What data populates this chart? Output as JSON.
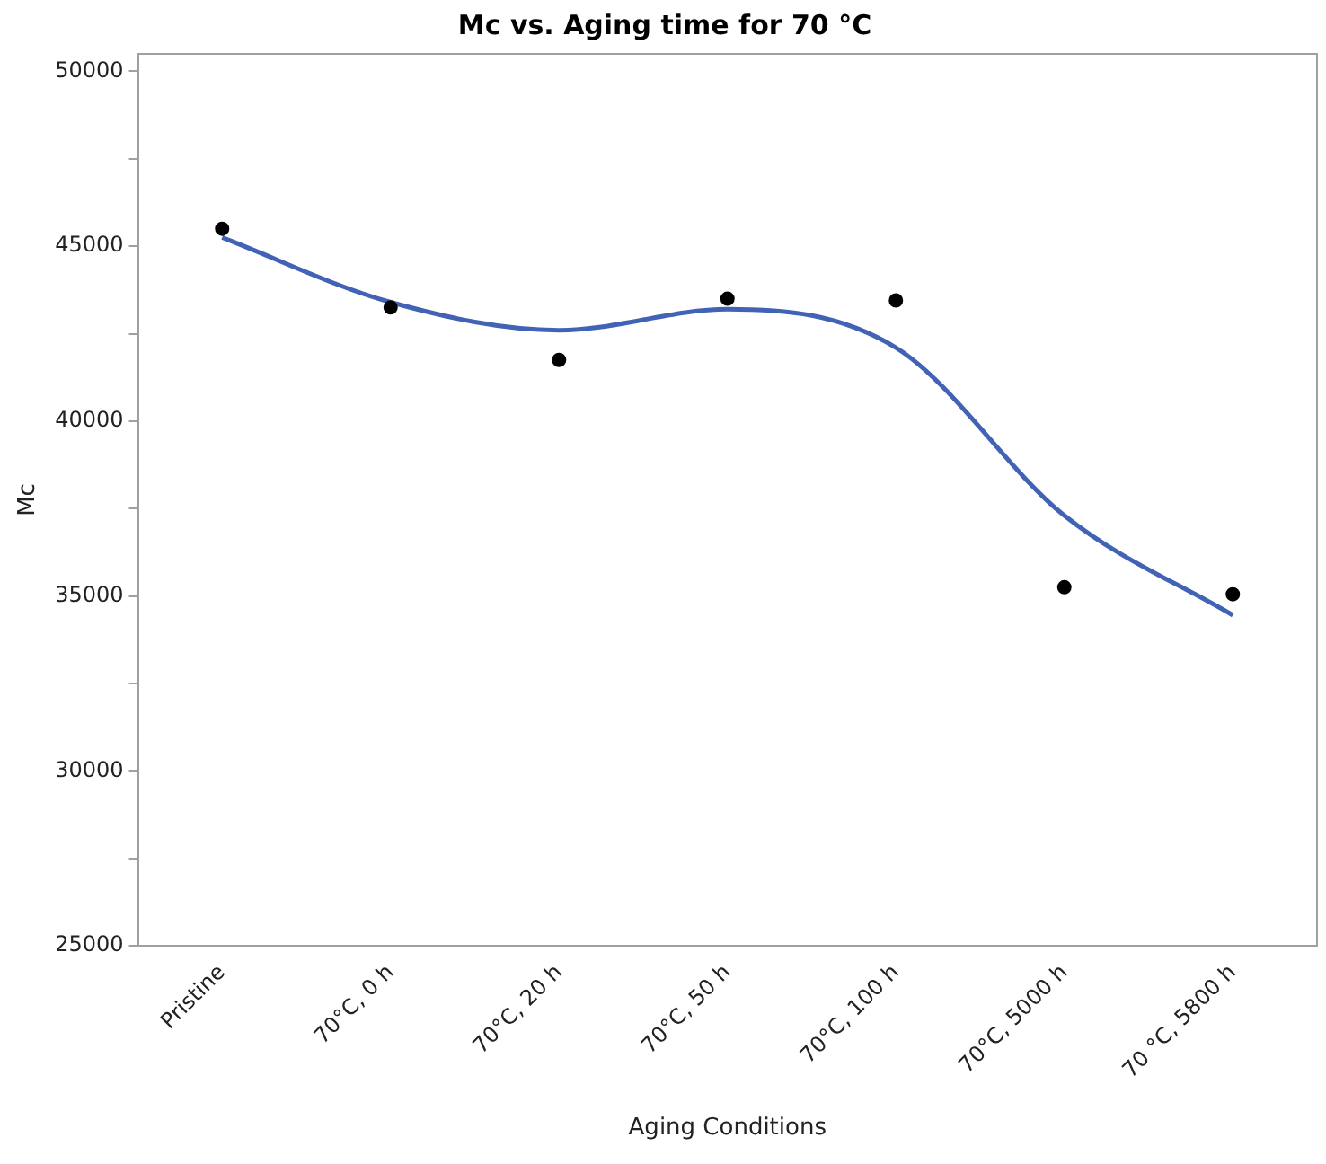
{
  "chart_data": {
    "type": "scatter",
    "title": "Mc vs. Aging time for 70 °C",
    "xlabel": "Aging Conditions",
    "ylabel": "Mc",
    "categories": [
      "Pristine",
      "70°C, 0 h",
      "70°C, 20 h",
      "70°C, 50 h",
      "70°C, 100 h",
      "70°C, 5000 h",
      "70 °C, 5800 h"
    ],
    "series": [
      {
        "color": "#000000",
        "marker": "circle",
        "x": [
          "Pristine",
          "70°C, 0 h",
          "70°C, 20 h",
          "70°C, 50 h",
          "70°C, 100 h",
          "70°C, 5000 h",
          "70 °C, 5800 h"
        ],
        "values": [
          45500,
          43250,
          41750,
          43500,
          43450,
          35250,
          35050
        ]
      },
      {
        "type": "line",
        "color": "#4263b5",
        "marker": "none",
        "line_style": "solid",
        "values": [
          45250,
          43400,
          42600,
          43200,
          42100,
          37300,
          34450
        ]
      }
    ],
    "ylim": [
      25000,
      50500
    ],
    "yticks": [
      25000,
      {
        "value": 27500,
        "label": null
      },
      30000,
      {
        "value": 32500,
        "label": null
      },
      35000,
      {
        "value": 37500,
        "label": null
      },
      40000,
      {
        "value": 42500,
        "label": null
      },
      45000,
      {
        "value": 47500,
        "label": null
      },
      50000
    ],
    "grid": false,
    "legend": false
  }
}
